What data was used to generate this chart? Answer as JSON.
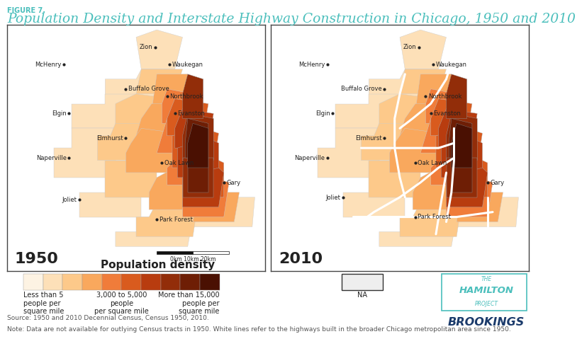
{
  "figure_label": "FIGURE 7.",
  "title": "Population Density and Interstate Highway Construction in Chicago, 1950 and 2010",
  "title_color": "#4bbfbc",
  "figure_label_color": "#4bbfbc",
  "background_color": "#ffffff",
  "map_border_color": "#333333",
  "year_label_fontsize": 16,
  "year_label_color": "#222222",
  "legend_title": "Population density",
  "legend_title_fontsize": 11,
  "legend_colors": [
    "#fdf3e3",
    "#fde0b8",
    "#fdc98a",
    "#f9a85d",
    "#f07c3a",
    "#d95b1e",
    "#b83c0f",
    "#922d09",
    "#6e1e05",
    "#4a1002"
  ],
  "legend_na_color": "#eeeeee",
  "legend_labels_left": "Less than 5\npeople per\nsquare mile",
  "legend_labels_center": "3,000 to 5,000\npeople\nper square mile",
  "legend_labels_right": "More than 15,000\npeople per\nsquare mile",
  "legend_labels_na": "NA",
  "scalebar_label": "0km 10km 20km",
  "source_text": "Source: 1950 and 2010 Decennial Census, Census 1950, 2010.",
  "note_text": "Note: Data are not available for outlying Census tracts in 1950. White lines refer to the highways built in the broader Chicago metropolitan area since 1950.",
  "hamilton_color": "#4bbfbc",
  "brookings_color": "#1a3a6b",
  "footnote_color": "#555555",
  "footnote_fontsize": 6.5
}
